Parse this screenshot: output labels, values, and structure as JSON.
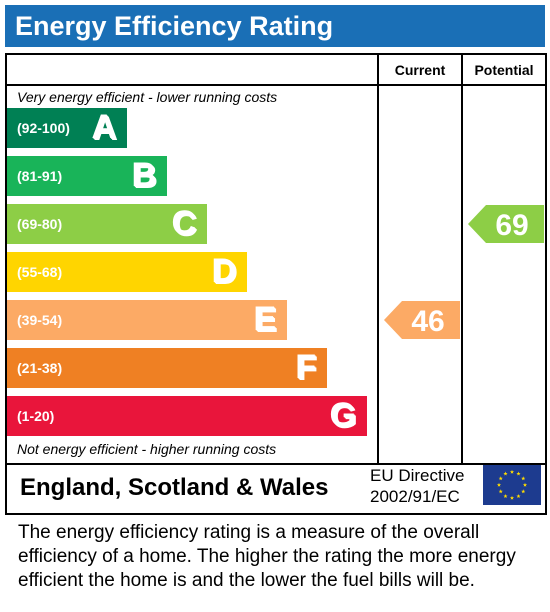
{
  "title": "Energy Efficiency Rating",
  "columns": {
    "current": "Current",
    "potential": "Potential"
  },
  "captions": {
    "top": "Very energy efficient - lower running costs",
    "bottom": "Not energy efficient - higher running costs"
  },
  "bands": [
    {
      "range": "(92-100)",
      "letter": "A",
      "color": "#008054"
    },
    {
      "range": "(81-91)",
      "letter": "B",
      "color": "#19b459"
    },
    {
      "range": "(69-80)",
      "letter": "C",
      "color": "#8dce46"
    },
    {
      "range": "(55-68)",
      "letter": "D",
      "color": "#ffd500"
    },
    {
      "range": "(39-54)",
      "letter": "E",
      "color": "#fcaa65"
    },
    {
      "range": "(21-38)",
      "letter": "F",
      "color": "#ef8023"
    },
    {
      "range": "(1-20)",
      "letter": "G",
      "color": "#e9153b"
    }
  ],
  "chart_data": {
    "type": "bar",
    "categories": [
      "A",
      "B",
      "C",
      "D",
      "E",
      "F",
      "G"
    ],
    "ranges": [
      "(92-100)",
      "(81-91)",
      "(69-80)",
      "(55-68)",
      "(39-54)",
      "(21-38)",
      "(1-20)"
    ],
    "current": {
      "value": 46,
      "band": "E",
      "color": "#fcaa65"
    },
    "potential": {
      "value": 69,
      "band": "C",
      "color": "#8dce46"
    }
  },
  "footer": {
    "country": "England, Scotland & Wales",
    "directive_line1": "EU Directive",
    "directive_line2": "2002/91/EC",
    "flag": "eu-flag-icon"
  },
  "description": "The energy efficiency rating is a measure of the overall efficiency of a home. The higher the rating the more energy efficient the home is and the lower the fuel bills will be.",
  "colors": {
    "title_bar": "#1a6fb6",
    "flag_blue": "#1d3b8f",
    "flag_star": "#ffdd00"
  }
}
